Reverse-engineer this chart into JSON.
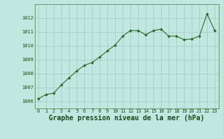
{
  "x": [
    0,
    1,
    2,
    3,
    4,
    5,
    6,
    7,
    8,
    9,
    10,
    11,
    12,
    13,
    14,
    15,
    16,
    17,
    18,
    19,
    20,
    21,
    22,
    23
  ],
  "y": [
    1006.2,
    1006.5,
    1006.6,
    1007.2,
    1007.7,
    1008.2,
    1008.6,
    1008.8,
    1009.2,
    1009.65,
    1010.05,
    1010.7,
    1011.1,
    1011.1,
    1010.8,
    1011.1,
    1011.2,
    1010.7,
    1010.7,
    1010.45,
    1010.5,
    1010.7,
    1012.3,
    1011.1
  ],
  "line_color": "#2d6a2d",
  "marker_color": "#2d6a2d",
  "bg_color": "#c0e8e0",
  "grid_color": "#a8ccc8",
  "xlabel": "Graphe pression niveau de la mer (hPa)",
  "xlabel_color": "#1a4a1a",
  "ylim_min": 1005.5,
  "ylim_max": 1013.0,
  "yticks": [
    1006,
    1007,
    1008,
    1009,
    1010,
    1011,
    1012
  ],
  "xticks": [
    0,
    1,
    2,
    3,
    4,
    5,
    6,
    7,
    8,
    9,
    10,
    11,
    12,
    13,
    14,
    15,
    16,
    17,
    18,
    19,
    20,
    21,
    22,
    23
  ],
  "tick_color": "#1a4a1a",
  "tick_fontsize": 5.0,
  "xlabel_fontsize": 7.0,
  "line_width": 0.8,
  "marker_size": 2.0
}
